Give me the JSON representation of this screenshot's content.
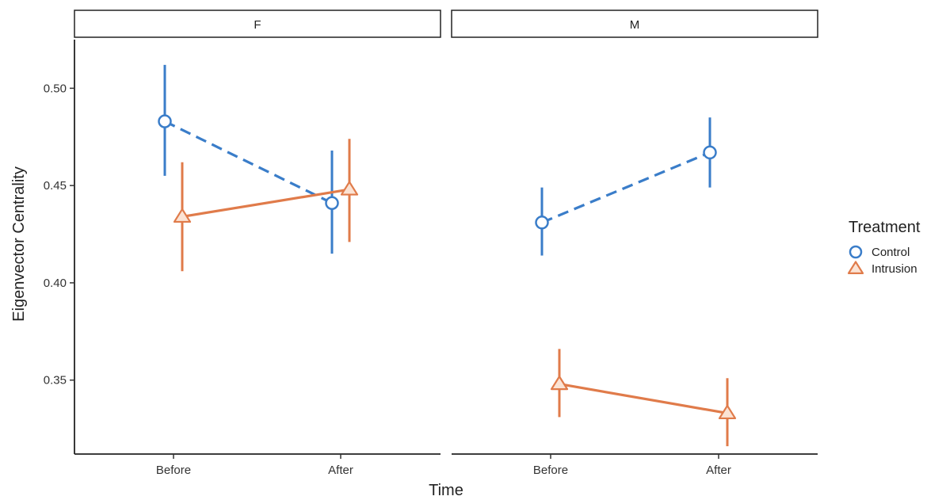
{
  "chart_data": {
    "type": "line",
    "facets": [
      "F",
      "M"
    ],
    "categories": [
      "Before",
      "After"
    ],
    "xlabel": "Time",
    "ylabel": "Eigenvector Centrality",
    "ylim": [
      0.312,
      0.525
    ],
    "yticks": [
      "0.35",
      "0.40",
      "0.45",
      "0.50"
    ],
    "legend_title": "Treatment",
    "legend_position": "right",
    "grid": false,
    "series": [
      {
        "name": "Control",
        "color": "#3a7dc9",
        "marker": "circle",
        "linestyle": "dashed",
        "values": {
          "F": [
            {
              "x": "Before",
              "y": 0.483,
              "lo": 0.455,
              "hi": 0.512
            },
            {
              "x": "After",
              "y": 0.441,
              "lo": 0.415,
              "hi": 0.468
            }
          ],
          "M": [
            {
              "x": "Before",
              "y": 0.431,
              "lo": 0.414,
              "hi": 0.449
            },
            {
              "x": "After",
              "y": 0.467,
              "lo": 0.449,
              "hi": 0.485
            }
          ]
        }
      },
      {
        "name": "Intrusion",
        "color": "#e07b4a",
        "marker": "triangle",
        "linestyle": "solid",
        "values": {
          "F": [
            {
              "x": "Before",
              "y": 0.434,
              "lo": 0.406,
              "hi": 0.462
            },
            {
              "x": "After",
              "y": 0.448,
              "lo": 0.421,
              "hi": 0.474
            }
          ],
          "M": [
            {
              "x": "Before",
              "y": 0.348,
              "lo": 0.331,
              "hi": 0.366
            },
            {
              "x": "After",
              "y": 0.333,
              "lo": 0.316,
              "hi": 0.351
            }
          ]
        }
      }
    ]
  }
}
